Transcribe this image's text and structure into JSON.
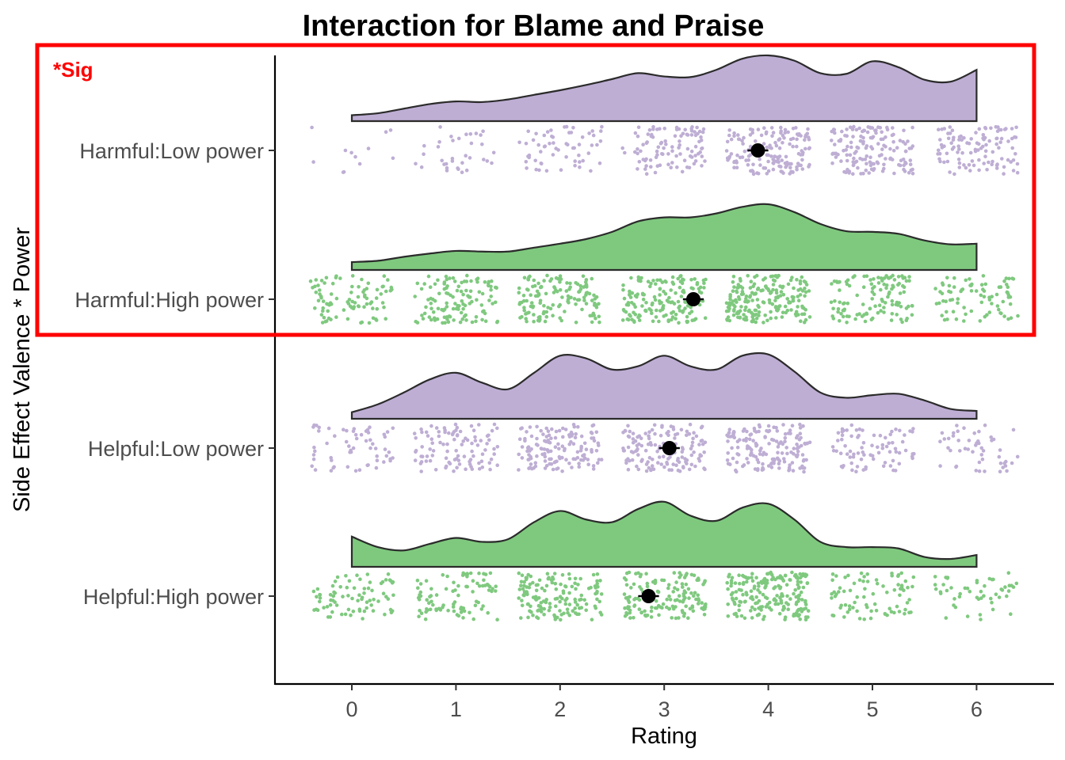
{
  "chart_data": {
    "type": "raincloud",
    "title": "Interaction for Blame and Praise",
    "xlabel": "Rating",
    "ylabel": "Side Effect Valence * Power",
    "xlim": [
      -0.75,
      6.75
    ],
    "x_ticks": [
      0,
      1,
      2,
      3,
      4,
      5,
      6
    ],
    "grid": false,
    "categories": [
      "Harmful:Low power",
      "Harmful:High power",
      "Helpful:Low power",
      "Helpful:High power"
    ],
    "series": [
      {
        "category": "Harmful:Low power",
        "color": "#beaed4",
        "mean": 3.9,
        "ci": [
          3.8,
          4.0
        ],
        "density": {
          "x": [
            0,
            0.25,
            0.5,
            0.75,
            1,
            1.25,
            1.5,
            1.75,
            2,
            2.25,
            2.5,
            2.75,
            3,
            3.25,
            3.5,
            3.75,
            4,
            4.25,
            4.5,
            4.75,
            5,
            5.25,
            5.5,
            5.75,
            6
          ],
          "y": [
            0.09,
            0.12,
            0.19,
            0.26,
            0.3,
            0.29,
            0.33,
            0.4,
            0.47,
            0.55,
            0.64,
            0.73,
            0.68,
            0.67,
            0.78,
            0.95,
            1.0,
            0.92,
            0.73,
            0.72,
            0.91,
            0.82,
            0.63,
            0.6,
            0.78
          ]
        },
        "points_per_level": [
          12,
          35,
          60,
          100,
          160,
          150,
          110
        ]
      },
      {
        "category": "Harmful:High power",
        "color": "#7fc97f",
        "mean": 3.28,
        "ci": [
          3.18,
          3.38
        ],
        "density": {
          "x": [
            0,
            0.25,
            0.5,
            0.75,
            1,
            1.25,
            1.5,
            1.75,
            2,
            2.25,
            2.5,
            2.75,
            3,
            3.25,
            3.5,
            3.75,
            4,
            4.25,
            4.5,
            4.75,
            5,
            5.25,
            5.5,
            5.75,
            6
          ],
          "y": [
            0.12,
            0.14,
            0.2,
            0.25,
            0.29,
            0.28,
            0.28,
            0.34,
            0.4,
            0.47,
            0.58,
            0.74,
            0.8,
            0.8,
            0.86,
            0.96,
            1.0,
            0.88,
            0.7,
            0.59,
            0.58,
            0.55,
            0.45,
            0.39,
            0.4
          ]
        },
        "points_per_level": [
          90,
          120,
          140,
          160,
          200,
          120,
          80
        ]
      },
      {
        "category": "Helpful:Low power",
        "color": "#beaed4",
        "mean": 3.05,
        "ci": [
          2.95,
          3.15
        ],
        "density": {
          "x": [
            0,
            0.25,
            0.5,
            0.75,
            1,
            1.25,
            1.5,
            1.75,
            2,
            2.25,
            2.5,
            2.75,
            3,
            3.25,
            3.5,
            3.75,
            4,
            4.25,
            4.5,
            4.75,
            5,
            5.25,
            5.5,
            5.75,
            6
          ],
          "y": [
            0.1,
            0.22,
            0.4,
            0.6,
            0.7,
            0.55,
            0.45,
            0.7,
            0.96,
            0.92,
            0.75,
            0.8,
            0.96,
            0.8,
            0.75,
            0.96,
            0.98,
            0.72,
            0.4,
            0.32,
            0.36,
            0.38,
            0.28,
            0.15,
            0.12
          ]
        },
        "points_per_level": [
          60,
          100,
          140,
          140,
          160,
          80,
          50
        ]
      },
      {
        "category": "Helpful:High power",
        "color": "#7fc97f",
        "mean": 2.85,
        "ci": [
          2.75,
          2.95
        ],
        "density": {
          "x": [
            0,
            0.25,
            0.5,
            0.75,
            1,
            1.25,
            1.5,
            1.75,
            2,
            2.25,
            2.5,
            2.75,
            3,
            3.25,
            3.5,
            3.75,
            4,
            4.25,
            4.5,
            4.75,
            5,
            5.25,
            5.5,
            5.75,
            6
          ],
          "y": [
            0.46,
            0.3,
            0.25,
            0.35,
            0.44,
            0.38,
            0.42,
            0.68,
            0.85,
            0.72,
            0.68,
            0.88,
            0.99,
            0.78,
            0.7,
            0.9,
            0.96,
            0.72,
            0.38,
            0.3,
            0.3,
            0.28,
            0.15,
            0.12,
            0.18
          ]
        },
        "points_per_level": [
          80,
          90,
          150,
          150,
          200,
          80,
          50
        ]
      }
    ],
    "annotation": {
      "text": "*Sig",
      "color": "#ff0000",
      "highlights": [
        "Harmful:Low power",
        "Harmful:High power"
      ]
    }
  }
}
